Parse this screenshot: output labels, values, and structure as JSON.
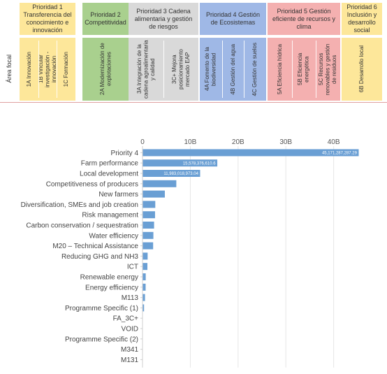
{
  "table": {
    "focal_label": "Área focal",
    "priorities": [
      {
        "title": "Prioridad 1 Transferencia del conocimiento e innovación",
        "color": "#fde79a",
        "areas": [
          "1A Innovación",
          "1B Vincular investigación - innovación",
          "1C Formación"
        ]
      },
      {
        "title": "Prioridad 2 Competitividad",
        "color": "#a9d08e",
        "areas": [
          "2A Modernización de explotaciones"
        ]
      },
      {
        "title": "Prioridad 3 Cadena alimentaria y gestión de riesgos",
        "color": "#d9d9d9",
        "areas": [
          "3A Integración de la cadena agroalimentaria y calidad",
          "3C+ Mejora posicionamiento mercado EAP"
        ]
      },
      {
        "title": "Prioridad 4 Gestión de Ecosistemas",
        "color": "#9fb8e6",
        "areas": [
          "4A Fomento de la biodiversidad",
          "4B Gestión del agua",
          "4C Gestión de suelos"
        ]
      },
      {
        "title": "Prioridad 5 Gestión eficiente de recursos y clima",
        "color": "#f4b0b0",
        "areas": [
          "5A Eficiencia hídrica",
          "5B Eficiencia energética",
          "5C Recursos renovables y gestión de residuos"
        ]
      },
      {
        "title": "Prioridad 6 Inclusión y desarrollo social",
        "color": "#fde79a",
        "areas": [
          "6B Desarrollo local"
        ]
      }
    ]
  },
  "chart_data": {
    "type": "bar",
    "orientation": "horizontal",
    "bar_color": "#6a9fd4",
    "x_ticks": [
      "0",
      "10B",
      "20B",
      "30B",
      "40B"
    ],
    "x_tick_values": [
      0,
      10000000000,
      20000000000,
      30000000000,
      40000000000
    ],
    "xlim": [
      0,
      45171287287.29
    ],
    "grid": true,
    "categories": [
      "Priority 4",
      "Farm performance",
      "Local development",
      "Competitiveness of producers",
      "New farmers",
      "Diversification, SMEs and job creation",
      "Risk management",
      "Carbon conservation / sequestration",
      "Water efficiency",
      "M20 – Technical Assistance",
      "Reducing GHG and NH3",
      "ICT",
      "Renewable energy",
      "Energy efficiency",
      "M113",
      "Programme Specific (1)",
      "FA_3C+",
      "VOID",
      "Programme Specific (2)",
      "M341",
      "M131"
    ],
    "values": [
      45171287287.29,
      15578376610.6,
      11983018973.04,
      7000000000,
      4600000000,
      2600000000,
      2550000000,
      2350000000,
      2200000000,
      2150000000,
      1000000000,
      950000000,
      600000000,
      580000000,
      450000000,
      250000000,
      0,
      0,
      0,
      0,
      0
    ],
    "data_labels": [
      "45,171,287,287.29",
      "15,578,376,610.6",
      "11,983,018,973.04",
      "",
      "",
      "",
      "",
      "",
      "",
      "",
      "",
      "",
      "",
      "",
      "",
      "",
      "",
      "",
      "",
      "",
      ""
    ]
  }
}
